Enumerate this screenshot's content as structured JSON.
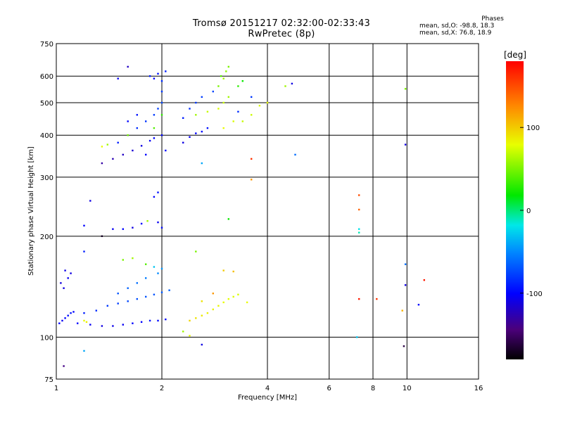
{
  "title": "Tromsø 20151217 02:32:00-02:33:43",
  "subtitle": "RwPretec (8p)",
  "phases": {
    "heading": "Phases",
    "line1": "mean, sd,O: -98.8, 18.3",
    "line2": "mean, sd,X:  76.8, 18.9"
  },
  "colors": {
    "grid": "#000000",
    "background": "#ffffff"
  },
  "chart_data": {
    "type": "scatter",
    "xlabel": "Frequency [MHz]",
    "ylabel": "Stationary phase Virtual Height [km]",
    "x_scale": "log2",
    "y_scale": "log",
    "xlim": [
      1,
      16
    ],
    "ylim": [
      75,
      750
    ],
    "x_ticks": [
      1,
      2,
      4,
      6,
      8,
      10,
      16
    ],
    "y_ticks": [
      75,
      100,
      200,
      300,
      400,
      500,
      600,
      750
    ],
    "grid": true,
    "colorbar": {
      "label": "[deg]",
      "range": [
        -180,
        180
      ],
      "ticks": [
        100,
        0,
        -100
      ]
    },
    "series": [
      {
        "points": [
          [
            1.02,
            110,
            -100
          ],
          [
            1.04,
            112,
            -105
          ],
          [
            1.06,
            114,
            -100
          ],
          [
            1.08,
            116,
            -98
          ],
          [
            1.1,
            118,
            -95
          ],
          [
            1.12,
            119,
            -100
          ],
          [
            1.05,
            140,
            -110
          ],
          [
            1.08,
            150,
            -105
          ],
          [
            1.1,
            155,
            -110
          ],
          [
            1.06,
            158,
            -108
          ],
          [
            1.03,
            145,
            -112
          ],
          [
            1.15,
            110,
            -100
          ],
          [
            1.25,
            109,
            -105
          ],
          [
            1.35,
            108,
            -110
          ],
          [
            1.45,
            108,
            -108
          ],
          [
            1.55,
            109,
            -105
          ],
          [
            1.65,
            110,
            -100
          ],
          [
            1.75,
            111,
            -100
          ],
          [
            1.85,
            112,
            -95
          ],
          [
            1.95,
            112,
            -98
          ],
          [
            2.05,
            113,
            -100
          ],
          [
            1.2,
            118,
            -90
          ],
          [
            1.3,
            120,
            -85
          ],
          [
            1.4,
            124,
            -80
          ],
          [
            1.5,
            126,
            -78
          ],
          [
            1.6,
            128,
            -75
          ],
          [
            1.7,
            130,
            -72
          ],
          [
            1.8,
            132,
            -70
          ],
          [
            1.9,
            134,
            -70
          ],
          [
            2.0,
            136,
            -68
          ],
          [
            2.1,
            138,
            -65
          ],
          [
            1.5,
            135,
            -70
          ],
          [
            1.6,
            140,
            -65
          ],
          [
            1.7,
            145,
            -60
          ],
          [
            1.8,
            150,
            -55
          ],
          [
            1.95,
            155,
            -50
          ],
          [
            2.0,
            160,
            -45
          ],
          [
            1.55,
            170,
            50
          ],
          [
            1.65,
            172,
            60
          ],
          [
            1.2,
            112,
            80
          ],
          [
            1.22,
            111,
            85
          ],
          [
            1.8,
            165,
            40
          ],
          [
            1.9,
            162,
            -30
          ],
          [
            2.4,
            112,
            95
          ],
          [
            2.5,
            114,
            90
          ],
          [
            2.6,
            116,
            88
          ],
          [
            2.7,
            118,
            85
          ],
          [
            2.8,
            121,
            84
          ],
          [
            2.9,
            124,
            82
          ],
          [
            3.0,
            127,
            80
          ],
          [
            3.1,
            130,
            78
          ],
          [
            3.2,
            132,
            76
          ],
          [
            3.3,
            134,
            75
          ],
          [
            3.5,
            127,
            80
          ],
          [
            2.6,
            128,
            90
          ],
          [
            2.8,
            135,
            120
          ],
          [
            3.0,
            158,
            100
          ],
          [
            3.2,
            157,
            105
          ],
          [
            2.5,
            180,
            50
          ],
          [
            2.3,
            104,
            60
          ],
          [
            2.4,
            101,
            80
          ],
          [
            2.6,
            95,
            -110
          ],
          [
            1.2,
            91,
            -40
          ],
          [
            1.05,
            82,
            -140
          ],
          [
            1.35,
            330,
            -130
          ],
          [
            1.45,
            340,
            -125
          ],
          [
            1.55,
            350,
            -120
          ],
          [
            1.65,
            360,
            -115
          ],
          [
            1.75,
            372,
            -110
          ],
          [
            1.85,
            385,
            -105
          ],
          [
            1.9,
            392,
            -100
          ],
          [
            2.0,
            400,
            -100
          ],
          [
            1.5,
            380,
            -90
          ],
          [
            1.6,
            400,
            -88
          ],
          [
            1.7,
            420,
            -85
          ],
          [
            1.8,
            440,
            -82
          ],
          [
            1.9,
            460,
            -80
          ],
          [
            1.95,
            480,
            -78
          ],
          [
            2.0,
            500,
            -75
          ],
          [
            2.0,
            540,
            -80
          ],
          [
            2.0,
            580,
            -85
          ],
          [
            2.05,
            620,
            -90
          ],
          [
            1.95,
            610,
            -95
          ],
          [
            1.85,
            600,
            -90
          ],
          [
            1.6,
            440,
            -100
          ],
          [
            1.7,
            460,
            -95
          ],
          [
            1.8,
            350,
            -100
          ],
          [
            2.05,
            360,
            -98
          ],
          [
            1.35,
            370,
            80
          ],
          [
            1.4,
            375,
            60
          ],
          [
            1.6,
            400,
            50
          ],
          [
            1.9,
            420,
            40
          ],
          [
            2.0,
            460,
            30
          ],
          [
            2.3,
            380,
            -110
          ],
          [
            2.4,
            395,
            -105
          ],
          [
            2.5,
            405,
            -100
          ],
          [
            2.6,
            410,
            -98
          ],
          [
            2.7,
            420,
            -95
          ],
          [
            2.3,
            450,
            -90
          ],
          [
            2.4,
            480,
            -85
          ],
          [
            2.5,
            500,
            -80
          ],
          [
            2.6,
            520,
            -78
          ],
          [
            2.8,
            540,
            -75
          ],
          [
            2.5,
            460,
            60
          ],
          [
            2.7,
            470,
            70
          ],
          [
            2.9,
            480,
            75
          ],
          [
            3.0,
            500,
            70
          ],
          [
            3.1,
            520,
            60
          ],
          [
            3.0,
            420,
            80
          ],
          [
            3.2,
            440,
            75
          ],
          [
            3.4,
            440,
            70
          ],
          [
            3.6,
            460,
            72
          ],
          [
            3.8,
            490,
            75
          ],
          [
            4.0,
            500,
            80
          ],
          [
            2.9,
            560,
            50
          ],
          [
            3.0,
            590,
            60
          ],
          [
            3.05,
            620,
            55
          ],
          [
            3.1,
            640,
            50
          ],
          [
            2.95,
            600,
            40
          ],
          [
            3.3,
            560,
            30
          ],
          [
            3.4,
            580,
            20
          ],
          [
            3.6,
            520,
            -80
          ],
          [
            3.3,
            470,
            -85
          ],
          [
            1.35,
            200,
            -170
          ],
          [
            1.2,
            180,
            -90
          ],
          [
            1.25,
            255,
            -110
          ],
          [
            1.2,
            215,
            -100
          ],
          [
            1.45,
            210,
            -105
          ],
          [
            1.55,
            210,
            -100
          ],
          [
            1.65,
            212,
            -110
          ],
          [
            1.75,
            218,
            -100
          ],
          [
            1.82,
            222,
            60
          ],
          [
            1.95,
            220,
            -105
          ],
          [
            2.0,
            212,
            -98
          ],
          [
            1.9,
            262,
            -100
          ],
          [
            1.95,
            270,
            -95
          ],
          [
            1.6,
            640,
            -120
          ],
          [
            1.9,
            590,
            -100
          ],
          [
            1.5,
            590,
            -105
          ],
          [
            4.5,
            560,
            60
          ],
          [
            4.7,
            570,
            -110
          ],
          [
            4.8,
            350,
            -60
          ],
          [
            3.6,
            340,
            160
          ],
          [
            3.6,
            295,
            120
          ],
          [
            3.1,
            225,
            20
          ],
          [
            2.6,
            330,
            -40
          ],
          [
            7.3,
            265,
            150
          ],
          [
            7.3,
            240,
            140
          ],
          [
            7.3,
            210,
            -20
          ],
          [
            7.3,
            205,
            -10
          ],
          [
            7.3,
            130,
            170
          ],
          [
            7.2,
            100,
            -30
          ],
          [
            8.2,
            130,
            160
          ],
          [
            9.7,
            120,
            110
          ],
          [
            9.8,
            94,
            -160
          ],
          [
            9.9,
            143,
            -110
          ],
          [
            9.9,
            165,
            -60
          ],
          [
            9.9,
            375,
            -110
          ],
          [
            9.9,
            550,
            50
          ],
          [
            11.2,
            148,
            170
          ],
          [
            10.8,
            125,
            -100
          ]
        ]
      }
    ]
  }
}
